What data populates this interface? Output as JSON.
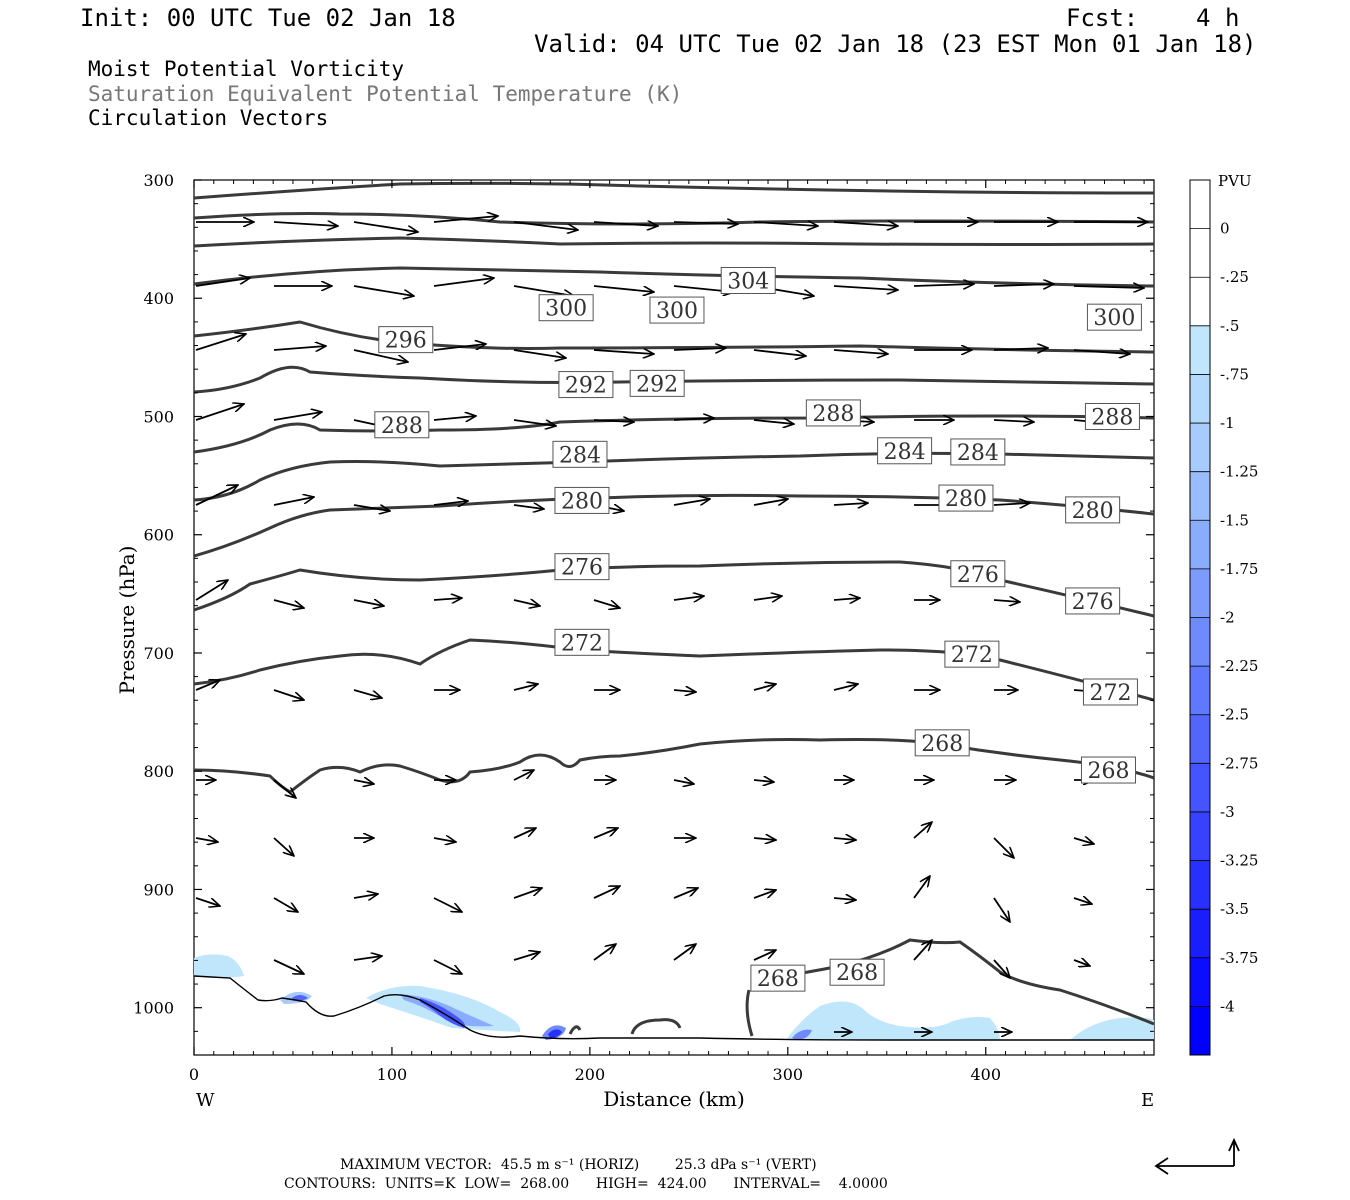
{
  "header": {
    "init": "Init: 00 UTC Tue 02 Jan 18",
    "fcst": "Fcst:    4 h",
    "valid": "Valid: 04 UTC Tue 02 Jan 18 (23 EST Mon 01 Jan 18)",
    "field1": "Moist Potential Vorticity",
    "field2": "Saturation Equivalent Potential Temperature (K)",
    "field3": "Circulation Vectors"
  },
  "footer": {
    "max_vector": "MAXIMUM VECTOR:  45.5 m s⁻¹ (HORIZ)        25.3 dPa s⁻¹ (VERT)",
    "contours": "CONTOURS:  UNITS=K  LOW=  268.00      HIGH=  424.00      INTERVAL=    4.0000"
  },
  "chart_data": {
    "type": "cross-section",
    "xlabel": "Distance (km)",
    "ylabel": "Pressure (hPa)",
    "x_ticks": [
      0,
      100,
      200,
      300,
      400
    ],
    "y_ticks": [
      300,
      400,
      500,
      600,
      700,
      800,
      900,
      1000
    ],
    "xlim": [
      0,
      485
    ],
    "ylim": [
      300,
      1040
    ],
    "y_inverted": true,
    "west_label": "W",
    "east_label": "E",
    "colorbar": {
      "units": "PVU",
      "labels": [
        "0",
        "-.25",
        "-.5",
        "-.75",
        "-1",
        "-1.25",
        "-1.5",
        "-1.75",
        "-2",
        "-2.25",
        "-2.5",
        "-2.75",
        "-3",
        "-3.25",
        "-3.5",
        "-3.75",
        "-4"
      ],
      "colors": [
        "#ffffff",
        "#ffffff",
        "#c0e6fb",
        "#b3d9fc",
        "#a6cbfc",
        "#98bcfc",
        "#8aacfc",
        "#7c9bfd",
        "#6e8afd",
        "#6078fd",
        "#5266fd",
        "#4454fe",
        "#3642fe",
        "#2830fe",
        "#1a1efe",
        "#0c0cff",
        "#0000ff"
      ]
    },
    "isotherm_labels": [
      {
        "value": "304",
        "x": 280,
        "p": 385
      },
      {
        "value": "300",
        "x": 188,
        "p": 408
      },
      {
        "value": "300",
        "x": 244,
        "p": 410
      },
      {
        "value": "300",
        "x": 465,
        "p": 416
      },
      {
        "value": "296",
        "x": 107,
        "p": 435
      },
      {
        "value": "292",
        "x": 198,
        "p": 473
      },
      {
        "value": "292",
        "x": 234,
        "p": 472
      },
      {
        "value": "288",
        "x": 105,
        "p": 507
      },
      {
        "value": "288",
        "x": 323,
        "p": 497
      },
      {
        "value": "288",
        "x": 464,
        "p": 500
      },
      {
        "value": "284",
        "x": 195,
        "p": 532
      },
      {
        "value": "284",
        "x": 359,
        "p": 529
      },
      {
        "value": "284",
        "x": 396,
        "p": 530
      },
      {
        "value": "280",
        "x": 196,
        "p": 571
      },
      {
        "value": "280",
        "x": 390,
        "p": 569
      },
      {
        "value": "280",
        "x": 454,
        "p": 579
      },
      {
        "value": "276",
        "x": 196,
        "p": 627
      },
      {
        "value": "276",
        "x": 396,
        "p": 633
      },
      {
        "value": "276",
        "x": 454,
        "p": 656
      },
      {
        "value": "272",
        "x": 196,
        "p": 691
      },
      {
        "value": "272",
        "x": 393,
        "p": 701
      },
      {
        "value": "272",
        "x": 463,
        "p": 733
      },
      {
        "value": "268",
        "x": 378,
        "p": 776
      },
      {
        "value": "268",
        "x": 462,
        "p": 799
      },
      {
        "value": "268",
        "x": 295,
        "p": 975
      },
      {
        "value": "268",
        "x": 335,
        "p": 970
      }
    ]
  }
}
